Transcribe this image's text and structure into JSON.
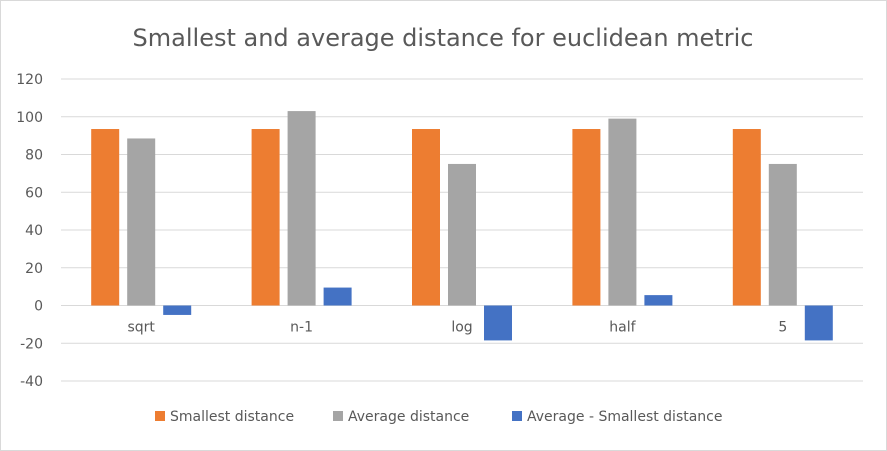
{
  "chart_data": {
    "type": "bar",
    "title": "Smallest and average distance for euclidean metric",
    "xlabel": "",
    "ylabel": "",
    "categories": [
      "sqrt",
      "n-1",
      "log",
      "half",
      "5"
    ],
    "series": [
      {
        "name": "Smallest distance",
        "color": "#ed7d31",
        "values": [
          93.5,
          93.5,
          93.5,
          93.5,
          93.5
        ]
      },
      {
        "name": "Average distance",
        "color": "#a5a5a5",
        "values": [
          88.5,
          103,
          75,
          99,
          75
        ]
      },
      {
        "name": "Average - Smallest distance",
        "color": "#4472c4",
        "values": [
          -5,
          9.5,
          -18.5,
          5.5,
          -18.5
        ]
      }
    ],
    "ylim": [
      -40,
      120
    ],
    "yticks": [
      "120",
      "100",
      "80",
      "60",
      "40",
      "20",
      "0",
      "-20",
      "-40"
    ],
    "grid": true,
    "legend_position": "bottom"
  }
}
